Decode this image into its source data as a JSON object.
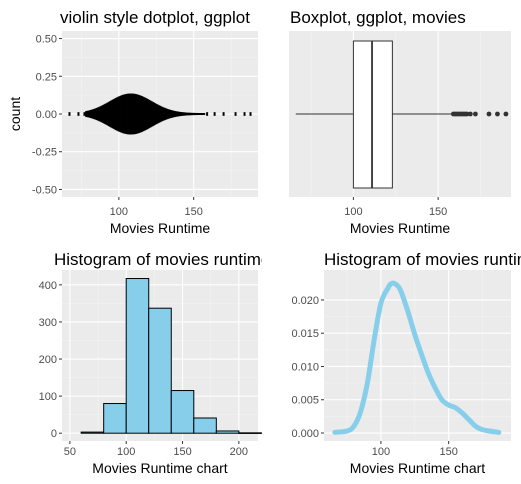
{
  "chart_data": [
    {
      "type": "scatter",
      "title": "violin style dotplot, ggplot",
      "xlabel": "Movies Runtime",
      "ylabel": "count",
      "xlim": [
        62,
        193
      ],
      "ylim": [
        -0.55,
        0.55
      ],
      "x_ticks": [
        "100",
        "150"
      ],
      "y_ticks": [
        "-0.50",
        "-0.25",
        "0.00",
        "0.25",
        "0.50"
      ],
      "grid": true,
      "summary": {
        "min": 66,
        "max": 187,
        "center": 0.0,
        "peak_runtime": 108,
        "max_halfwidth": 0.13
      },
      "outlier_points": [
        67,
        73,
        77,
        159,
        164,
        170,
        178,
        184,
        188
      ]
    },
    {
      "type": "boxplot",
      "title": "Boxplot, ggplot, movies",
      "xlabel": "Movies Runtime",
      "ylabel": "",
      "xlim": [
        62,
        193
      ],
      "x_ticks": [
        "100",
        "150"
      ],
      "grid": true,
      "box": {
        "whisker_low": 66,
        "q1": 100,
        "median": 111,
        "q3": 123,
        "whisker_high": 158
      },
      "outliers": [
        159,
        160,
        161,
        162,
        163,
        164,
        165,
        166,
        167,
        169,
        172,
        180,
        185,
        190
      ]
    },
    {
      "type": "histogram",
      "title": "Histogram of movies runtime",
      "xlabel": "Movies Runtime chart",
      "ylabel": "",
      "xlim": [
        43,
        217
      ],
      "ylim": [
        -21,
        440
      ],
      "x_ticks": [
        "50",
        "100",
        "150",
        "200"
      ],
      "y_ticks": [
        "0",
        "100",
        "200",
        "300",
        "400"
      ],
      "grid": true,
      "fill_color": "#87CEEB",
      "bins": [
        {
          "x0": 60,
          "x1": 80,
          "count": 3
        },
        {
          "x0": 80,
          "x1": 100,
          "count": 80
        },
        {
          "x0": 100,
          "x1": 120,
          "count": 417
        },
        {
          "x0": 120,
          "x1": 140,
          "count": 337
        },
        {
          "x0": 140,
          "x1": 160,
          "count": 115
        },
        {
          "x0": 160,
          "x1": 180,
          "count": 41
        },
        {
          "x0": 180,
          "x1": 200,
          "count": 6
        },
        {
          "x0": 200,
          "x1": 220,
          "count": 1
        }
      ]
    },
    {
      "type": "line",
      "title": "Histogram of movies runtime",
      "xlabel": "Movies Runtime chart",
      "ylabel": "",
      "xlim": [
        58,
        196
      ],
      "ylim": [
        -0.0012,
        0.0245
      ],
      "x_ticks": [
        "100",
        "150"
      ],
      "y_ticks": [
        "0.000",
        "0.005",
        "0.010",
        "0.015",
        "0.020"
      ],
      "grid": true,
      "line_color": "#87CEEB",
      "series": [
        {
          "x": [
            66,
            75,
            80,
            85,
            90,
            95,
            100,
            105,
            108,
            112,
            115,
            120,
            125,
            130,
            135,
            140,
            145,
            150,
            155,
            160,
            165,
            170,
            175,
            180,
            187
          ],
          "y": [
            0.0001,
            0.0003,
            0.001,
            0.0032,
            0.0075,
            0.014,
            0.0195,
            0.0217,
            0.0225,
            0.0222,
            0.0212,
            0.0182,
            0.0148,
            0.0118,
            0.009,
            0.0068,
            0.005,
            0.0042,
            0.0038,
            0.003,
            0.002,
            0.001,
            0.0005,
            0.0003,
            0.0001
          ]
        }
      ]
    }
  ]
}
